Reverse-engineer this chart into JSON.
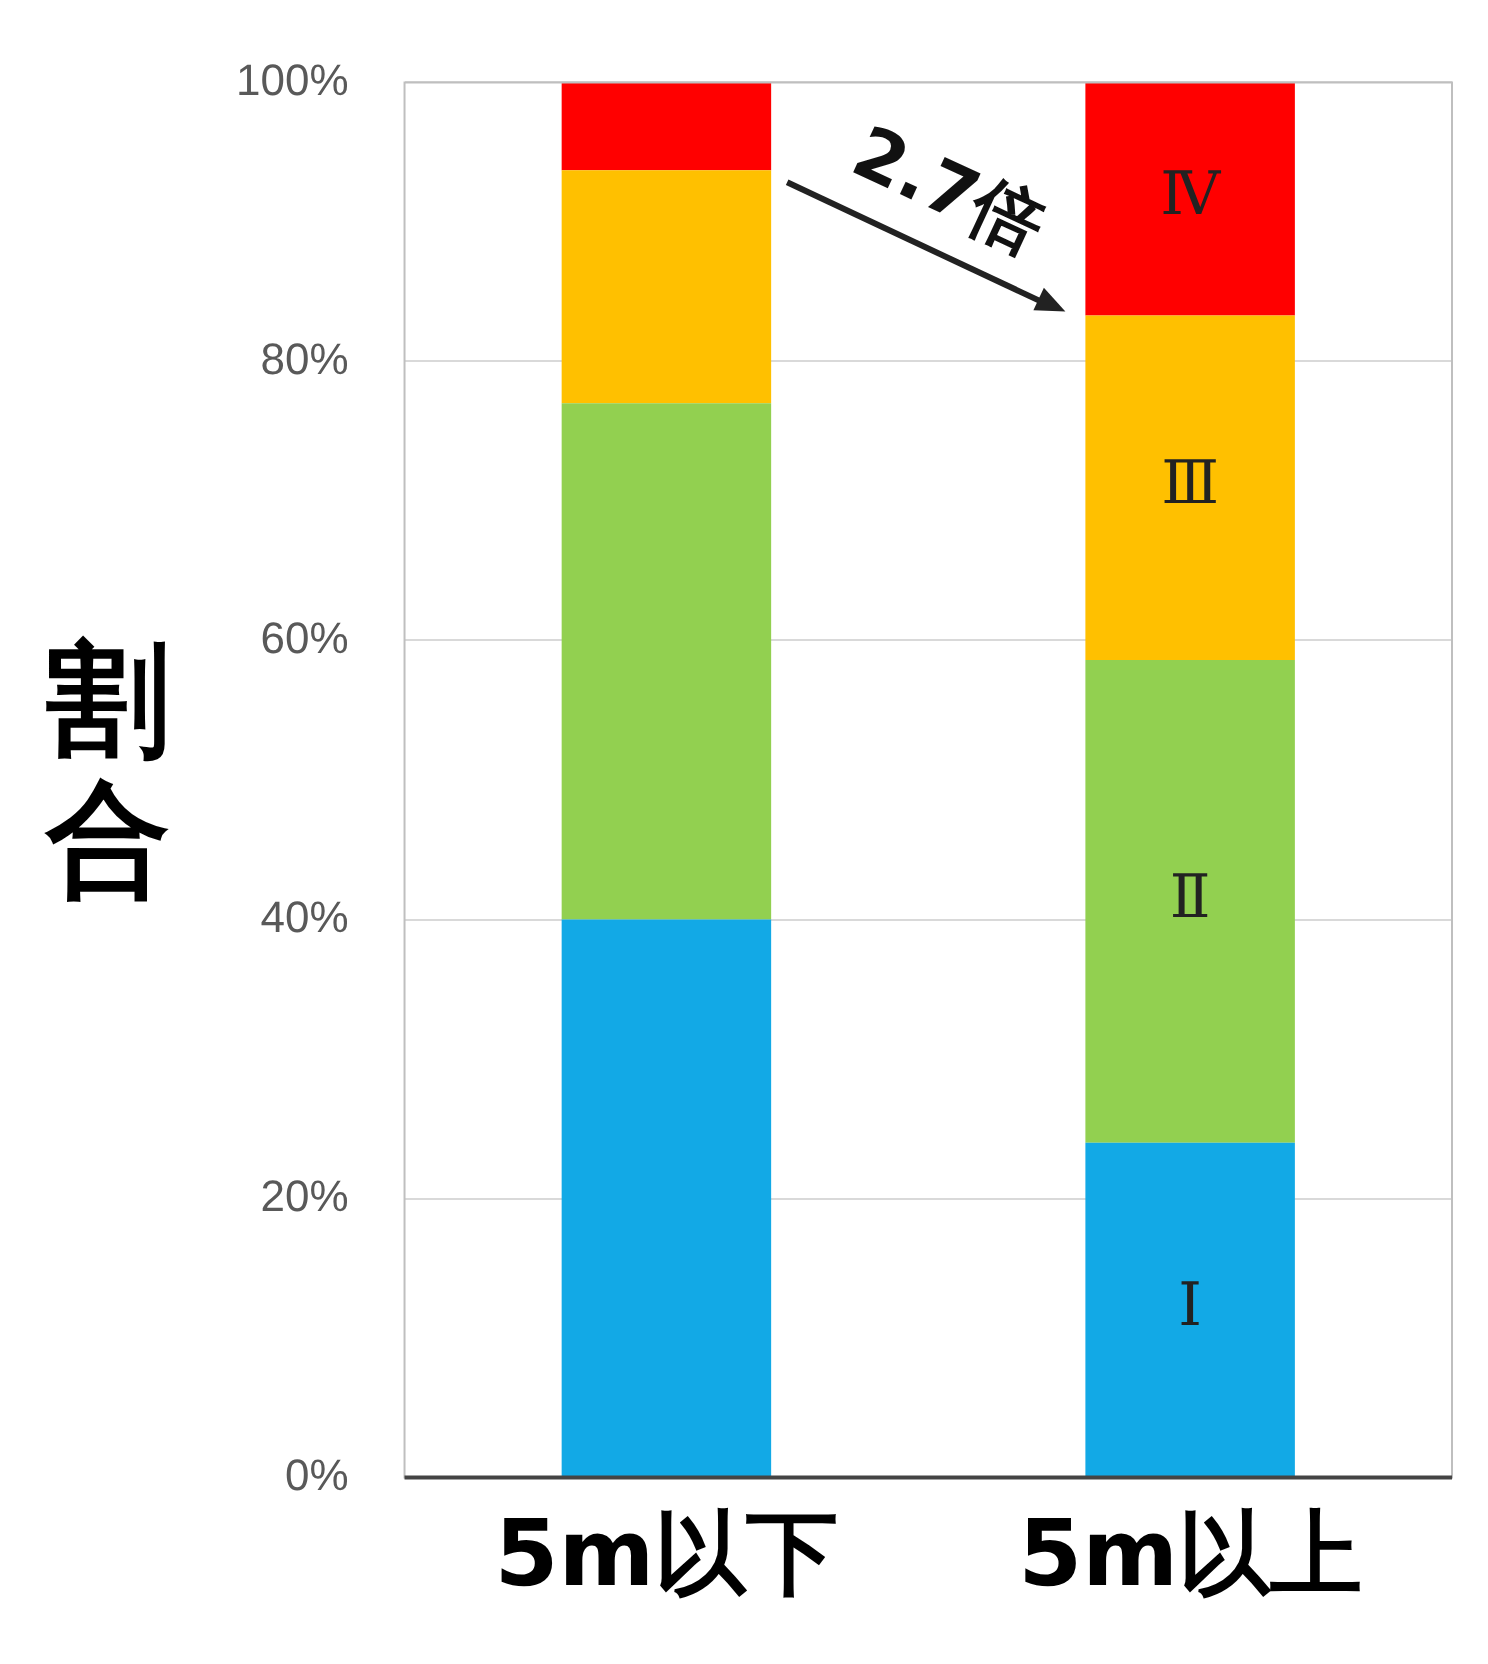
{
  "chart_data": {
    "type": "bar",
    "stacked": true,
    "ylabel": "割合",
    "categories": [
      "5m以下",
      "5m以上"
    ],
    "series": [
      {
        "name": "Ⅰ",
        "color": "#12a9e6",
        "values": [
          40,
          24
        ]
      },
      {
        "name": "Ⅱ",
        "color": "#92d050",
        "values": [
          37,
          34.6
        ]
      },
      {
        "name": "Ⅲ",
        "color": "#ffc000",
        "values": [
          16.7,
          24.7
        ]
      },
      {
        "name": "Ⅳ",
        "color": "#ff0000",
        "values": [
          6.3,
          16.7
        ]
      }
    ],
    "ylim": [
      0,
      100
    ],
    "yticks": [
      {
        "value": 0,
        "label": "0%"
      },
      {
        "value": 20,
        "label": "20%"
      },
      {
        "value": 40,
        "label": "40%"
      },
      {
        "value": 60,
        "label": "60%"
      },
      {
        "value": 80,
        "label": "80%"
      },
      {
        "value": 100,
        "label": "100%"
      }
    ],
    "grid": "y",
    "legend": false,
    "annotations": [
      "2.7倍"
    ]
  }
}
